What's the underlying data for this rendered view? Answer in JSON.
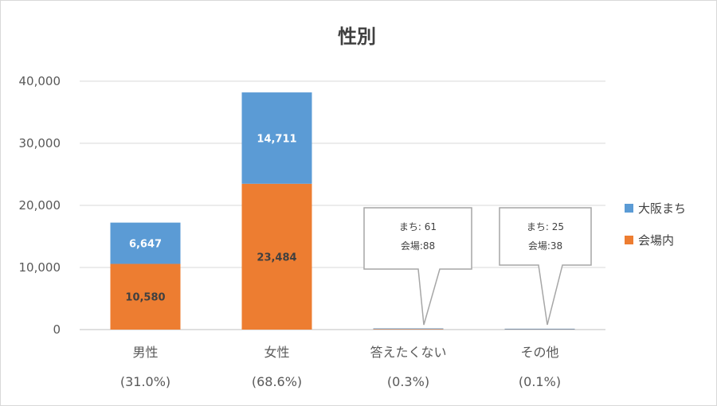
{
  "chart_data": {
    "type": "bar",
    "stacked": true,
    "title": "性別",
    "categories": [
      "男性",
      "女性",
      "答えたくない",
      "その他"
    ],
    "category_percent": [
      "(31.0%)",
      "(68.6%)",
      "(0.3%)",
      "(0.1%)"
    ],
    "series": [
      {
        "name": "会場内",
        "color": "#ED7D31",
        "values": [
          10580,
          23484,
          88,
          38
        ],
        "labels": [
          "10,580",
          "23,484",
          "",
          ""
        ]
      },
      {
        "name": "大阪まち",
        "color": "#5B9BD5",
        "values": [
          6647,
          14711,
          61,
          25
        ],
        "labels": [
          "6,647",
          "14,711",
          "",
          ""
        ]
      }
    ],
    "ylim": [
      0,
      40000
    ],
    "yticks": [
      0,
      10000,
      20000,
      30000,
      40000
    ],
    "ytick_labels": [
      "0",
      "10,000",
      "20,000",
      "30,000",
      "40,000"
    ],
    "grid": true,
    "legend_position": "right",
    "legend": [
      "大阪まち",
      "会場内"
    ],
    "callouts": [
      {
        "category_index": 2,
        "lines": [
          "まち: 61",
          "会場:88"
        ]
      },
      {
        "category_index": 3,
        "lines": [
          "まち: 25",
          "会場:38"
        ]
      }
    ]
  }
}
